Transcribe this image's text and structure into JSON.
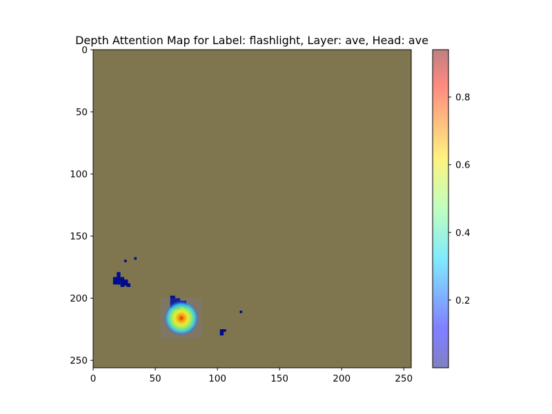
{
  "chart_data": {
    "type": "heatmap",
    "title": "Depth Attention Map for Label: flashlight, Layer: ave, Head: ave",
    "xlabel": "",
    "ylabel": "",
    "xlim": [
      0,
      256
    ],
    "ylim": [
      256,
      0
    ],
    "y_inverted": true,
    "grid": false,
    "x_ticks": [
      {
        "value": 0,
        "label": "0"
      },
      {
        "value": 50,
        "label": "50"
      },
      {
        "value": 100,
        "label": "100"
      },
      {
        "value": 150,
        "label": "150"
      },
      {
        "value": 200,
        "label": "200"
      },
      {
        "value": 250,
        "label": "250"
      }
    ],
    "y_ticks": [
      {
        "value": 0,
        "label": "0"
      },
      {
        "value": 50,
        "label": "50"
      },
      {
        "value": 100,
        "label": "100"
      },
      {
        "value": 150,
        "label": "150"
      },
      {
        "value": 200,
        "label": "200"
      },
      {
        "value": 250,
        "label": "250"
      }
    ],
    "background_color": "#7f7650",
    "colormap": "jet",
    "alpha": 0.5,
    "colorbar": {
      "range": [
        0.0,
        0.94
      ],
      "placement": "right",
      "ticks": [
        {
          "value": 0.2,
          "label": "0.2"
        },
        {
          "value": 0.4,
          "label": "0.4"
        },
        {
          "value": 0.6,
          "label": "0.6"
        },
        {
          "value": 0.8,
          "label": "0.8"
        }
      ]
    },
    "hotspots": [
      {
        "x": 71,
        "y": 216,
        "sigma": 5.5,
        "peak": 0.94
      }
    ],
    "blobs": [
      {
        "x": 62,
        "y": 198,
        "w": 4,
        "h": 10
      },
      {
        "x": 65,
        "y": 200,
        "w": 5,
        "h": 9
      },
      {
        "x": 69,
        "y": 202,
        "w": 6,
        "h": 5
      },
      {
        "x": 74,
        "y": 205,
        "w": 2,
        "h": 3
      },
      {
        "x": 16,
        "y": 183,
        "w": 6,
        "h": 6
      },
      {
        "x": 19,
        "y": 179,
        "w": 3,
        "h": 4
      },
      {
        "x": 22,
        "y": 183,
        "w": 3,
        "h": 8
      },
      {
        "x": 25,
        "y": 185,
        "w": 3,
        "h": 5
      },
      {
        "x": 27,
        "y": 188,
        "w": 3,
        "h": 3
      },
      {
        "x": 25,
        "y": 169,
        "w": 2,
        "h": 2
      },
      {
        "x": 33,
        "y": 167,
        "w": 2,
        "h": 2
      },
      {
        "x": 102,
        "y": 225,
        "w": 3,
        "h": 5
      },
      {
        "x": 104,
        "y": 225,
        "w": 3,
        "h": 2
      },
      {
        "x": 118,
        "y": 210,
        "w": 2,
        "h": 2
      }
    ]
  }
}
